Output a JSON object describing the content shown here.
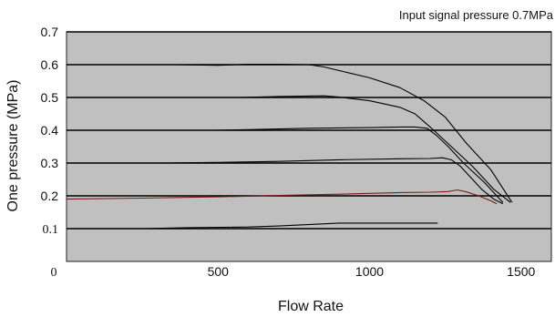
{
  "chart_data": {
    "type": "line",
    "title": "",
    "annotation": "Input signal pressure 0.7MPa",
    "xlabel": "Flow Rate",
    "ylabel": "One pressure (MPa)",
    "xlim": [
      0,
      1600
    ],
    "ylim": [
      0,
      0.7
    ],
    "x_ticks": [
      "0",
      "500",
      "1000",
      "1500"
    ],
    "y_ticks": [
      "0.1",
      "0.2",
      "0.3",
      "0.4",
      "0.5",
      "0.6",
      "0.7"
    ],
    "grid": true,
    "grid_axis": "y",
    "plot_background": "#c0c0c0",
    "line_color": "#000000",
    "accent_line_color": "#7a1a1a",
    "series": [
      {
        "x": [
          0,
          250,
          400,
          600,
          700,
          900,
          1000,
          1100,
          1200,
          1225
        ],
        "y": [
          0.1,
          0.1,
          0.103,
          0.105,
          0.108,
          0.117,
          0.117,
          0.117,
          0.117,
          0.117
        ]
      },
      {
        "x": [
          0,
          250,
          500,
          700,
          900,
          1100,
          1200,
          1260,
          1290,
          1320,
          1360,
          1400,
          1420
        ],
        "y": [
          0.19,
          0.193,
          0.197,
          0.201,
          0.205,
          0.21,
          0.211,
          0.213,
          0.218,
          0.212,
          0.2,
          0.185,
          0.176
        ]
      },
      {
        "x": [
          300,
          500,
          700,
          900,
          1100,
          1200,
          1240,
          1270,
          1300,
          1330,
          1370,
          1410,
          1440
        ],
        "y": [
          0.3,
          0.302,
          0.305,
          0.31,
          0.313,
          0.314,
          0.316,
          0.31,
          0.29,
          0.26,
          0.22,
          0.19,
          0.176
        ]
      },
      {
        "x": [
          490,
          600,
          800,
          1000,
          1100,
          1150,
          1190,
          1220,
          1260,
          1310,
          1380,
          1440
        ],
        "y": [
          0.4,
          0.402,
          0.406,
          0.408,
          0.41,
          0.41,
          0.406,
          0.385,
          0.35,
          0.3,
          0.24,
          0.18
        ]
      },
      {
        "x": [
          570,
          700,
          850,
          900,
          1000,
          1100,
          1150,
          1200,
          1270,
          1340,
          1410,
          1465
        ],
        "y": [
          0.5,
          0.503,
          0.505,
          0.501,
          0.49,
          0.47,
          0.45,
          0.41,
          0.35,
          0.29,
          0.22,
          0.18
        ]
      },
      {
        "x": [
          360,
          500,
          600,
          700,
          800,
          850,
          900,
          1000,
          1100,
          1180,
          1250,
          1320,
          1400,
          1470
        ],
        "y": [
          0.6,
          0.598,
          0.601,
          0.601,
          0.6,
          0.593,
          0.582,
          0.56,
          0.53,
          0.49,
          0.44,
          0.36,
          0.28,
          0.18
        ]
      }
    ]
  }
}
